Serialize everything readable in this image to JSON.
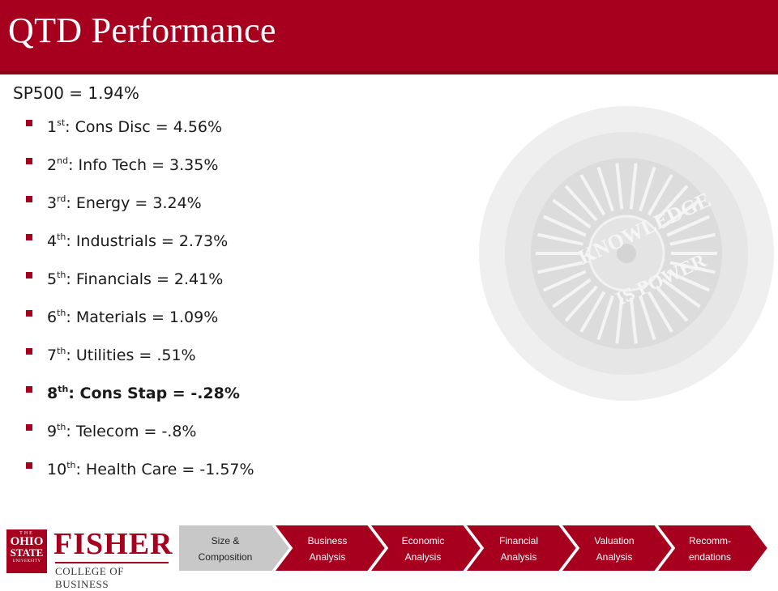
{
  "slide": {
    "title": "QTD Performance",
    "headline": "SP500 = 1.94%",
    "ranks": [
      {
        "num": "1",
        "sup": "st",
        "text": ": Cons Disc = 4.56%",
        "bold": false
      },
      {
        "num": "2",
        "sup": "nd",
        "text": ": Info Tech = 3.35%",
        "bold": false
      },
      {
        "num": "3",
        "sup": "rd",
        "text": ": Energy = 3.24%",
        "bold": false
      },
      {
        "num": "4",
        "sup": "th",
        "text": ": Industrials = 2.73%",
        "bold": false
      },
      {
        "num": "5",
        "sup": "th",
        "text": ": Financials = 2.41%",
        "bold": false
      },
      {
        "num": "6",
        "sup": "th",
        "text": ": Materials = 1.09%",
        "bold": false
      },
      {
        "num": "7",
        "sup": "th",
        "text": ": Utilities = .51%",
        "bold": false
      },
      {
        "num": "8",
        "sup": "th",
        "text": ": Cons Stap = -.28%",
        "bold": true
      },
      {
        "num": "9",
        "sup": "th",
        "text": ": Telecom = -.8%",
        "bold": false
      },
      {
        "num": "10",
        "sup": "th",
        "text": ": Health Care = -1.57%",
        "bold": false
      }
    ]
  },
  "footer": {
    "logo": {
      "seal_the": "THE",
      "seal_ohio": "OHIO",
      "seal_state": "STATE",
      "seal_university": "UNIVERSITY",
      "name": "FISHER",
      "subtitle": "COLLEGE OF BUSINESS"
    },
    "nav_steps": [
      {
        "label": "Size &\nComposition",
        "active": true
      },
      {
        "label": "Business\nAnalysis",
        "active": false
      },
      {
        "label": "Economic\nAnalysis",
        "active": false
      },
      {
        "label": "Financial\nAnalysis",
        "active": false
      },
      {
        "label": "Valuation\nAnalysis",
        "active": false
      },
      {
        "label": "Recomm-\nendations",
        "active": false
      }
    ]
  },
  "watermark": {
    "text_top": "KNOWLEDGE",
    "text_bottom": "IS POWER"
  },
  "colors": {
    "brand": "#a6001e",
    "nav_active": "#c8c8c8",
    "nav_inactive": "#a6001e"
  }
}
